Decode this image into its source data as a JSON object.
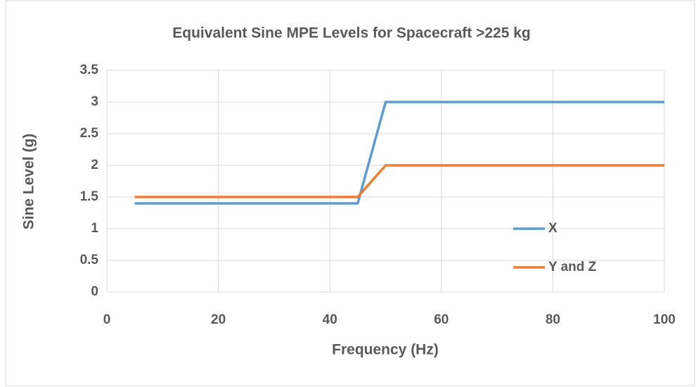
{
  "chart_data": {
    "type": "line",
    "title": "Equivalent Sine MPE Levels for Spacecraft >225 kg",
    "x_label": "Frequency (Hz)",
    "y_label": "Sine Level (g)",
    "x": [
      5,
      45,
      50,
      100
    ],
    "series": [
      {
        "name": "X",
        "color": "#5b9bd5",
        "values": [
          1.4,
          1.4,
          3,
          3
        ]
      },
      {
        "name": "Y and Z",
        "color": "#ed7d31",
        "values": [
          1.5,
          1.5,
          2,
          2
        ]
      }
    ],
    "xlim": [
      0,
      100
    ],
    "xticks": [
      0,
      20,
      40,
      60,
      80,
      100
    ],
    "ylim": [
      0,
      3.5
    ],
    "yticks": [
      0,
      0.5,
      1,
      1.5,
      2,
      2.5,
      3,
      3.5
    ],
    "grid": true,
    "legend": "right"
  }
}
